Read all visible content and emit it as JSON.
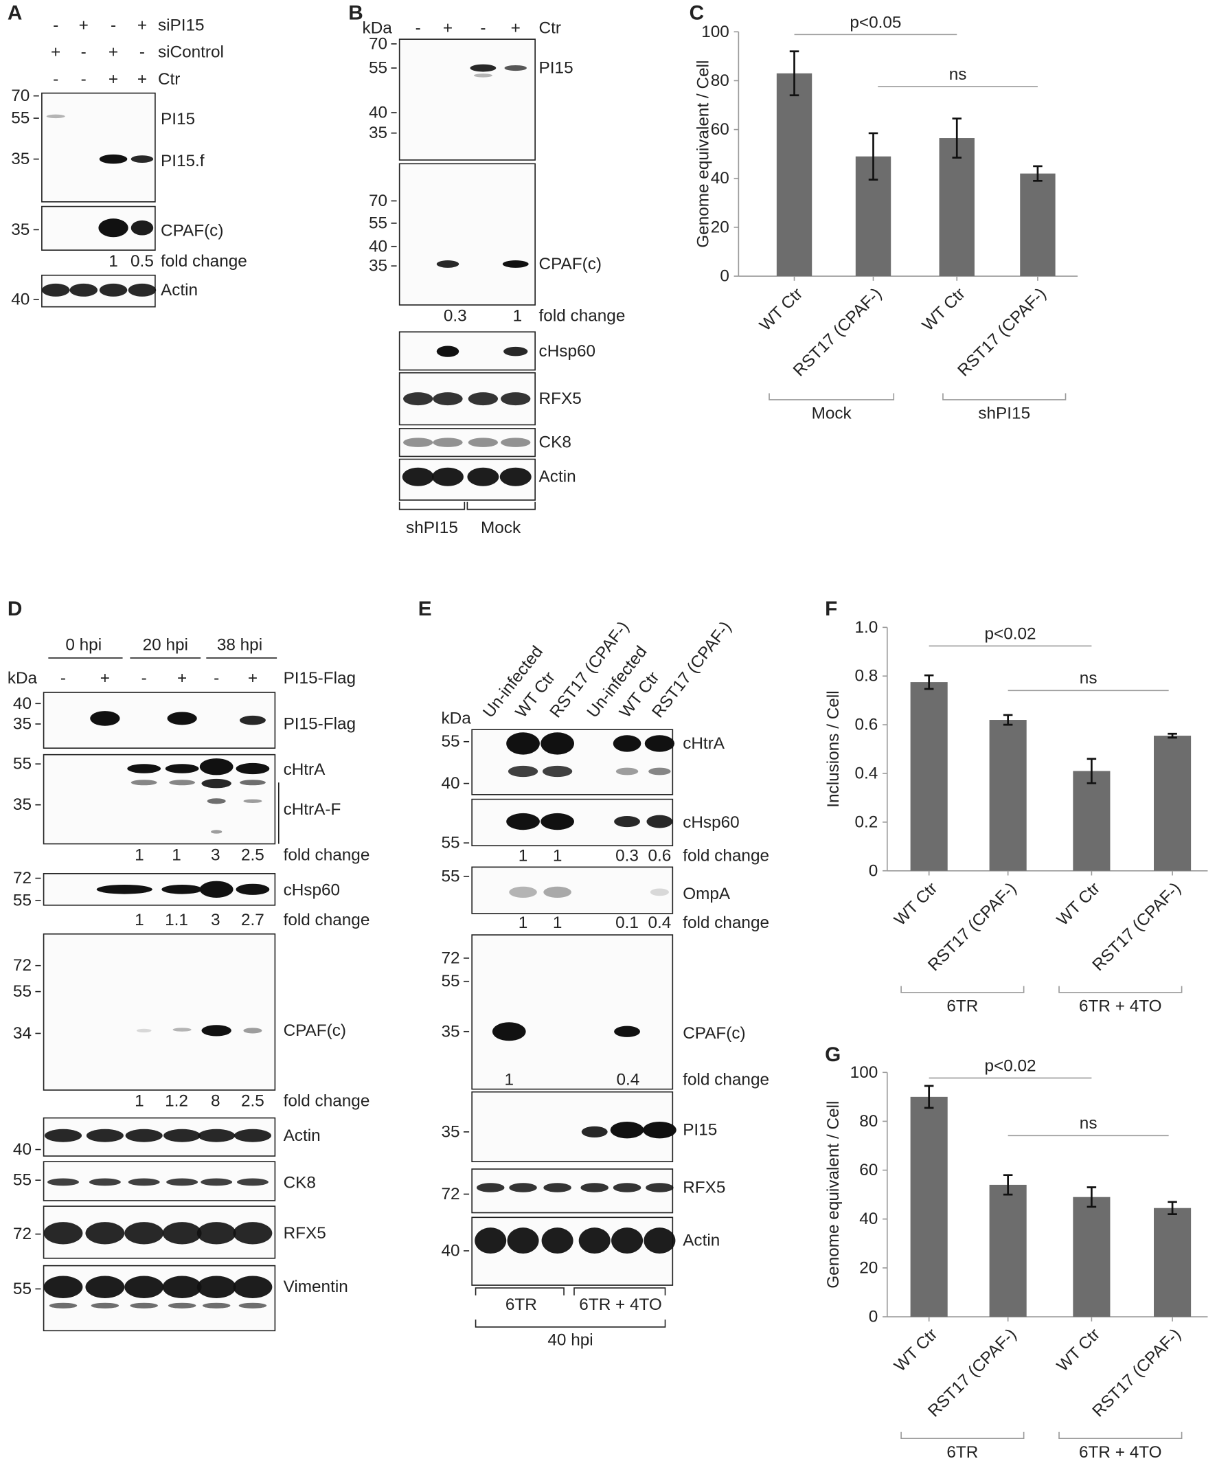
{
  "blots": {
    "a": {
      "letter": "A",
      "conditions": [
        {
          "name": "siPI15",
          "signs": [
            "-",
            "+",
            "-",
            "+"
          ]
        },
        {
          "name": "siControl",
          "signs": [
            "+",
            "-",
            "+",
            "-"
          ]
        },
        {
          "name": "Ctr",
          "signs": [
            "-",
            "-",
            "+",
            "+"
          ]
        }
      ],
      "rows": [
        {
          "markers": [
            "70",
            "55",
            "35"
          ],
          "labels": [
            "PI15",
            "PI15.f"
          ]
        },
        {
          "markers": [
            "35"
          ],
          "labels": [
            "CPAF(c)"
          ],
          "fold_change": [
            "1",
            "0.5"
          ]
        },
        {
          "markers": [
            "40"
          ],
          "labels": [
            "Actin"
          ]
        }
      ],
      "fold_label": "fold change"
    },
    "b": {
      "letter": "B",
      "unit": "kDa",
      "condition": {
        "name": "Ctr",
        "signs": [
          "-",
          "+",
          "-",
          "+"
        ]
      },
      "rows": [
        {
          "markers": [
            "70",
            "55",
            "40",
            "35"
          ],
          "labels": [
            "PI15"
          ]
        },
        {
          "markers": [
            "70",
            "55",
            "40",
            "35"
          ],
          "labels": [
            "CPAF(c)"
          ],
          "fold_change": [
            "0.3",
            "1"
          ]
        },
        {
          "markers": [],
          "labels": [
            "cHsp60"
          ]
        },
        {
          "markers": [],
          "labels": [
            "RFX5"
          ]
        },
        {
          "markers": [],
          "labels": [
            "CK8"
          ]
        },
        {
          "markers": [],
          "labels": [
            "Actin"
          ]
        }
      ],
      "fold_label": "fold change",
      "groups": [
        "shPI15",
        "Mock"
      ]
    },
    "d": {
      "letter": "D",
      "unit": "kDa",
      "timepoints": [
        "0 hpi",
        "20 hpi",
        "38 hpi"
      ],
      "condition": {
        "name": "PI15-Flag",
        "signs": [
          "-",
          "+",
          "-",
          "+",
          "-",
          "+"
        ]
      },
      "rows": [
        {
          "markers": [
            "40",
            "35"
          ],
          "labels": [
            "PI15-Flag"
          ]
        },
        {
          "markers": [
            "55",
            "35"
          ],
          "labels": [
            "cHtrA",
            "cHtrA-F"
          ],
          "fold_change": [
            "1",
            "1",
            "3",
            "2.5"
          ]
        },
        {
          "markers": [
            "72",
            "55"
          ],
          "labels": [
            "cHsp60"
          ],
          "fold_change": [
            "1",
            "1.1",
            "3",
            "2.7"
          ]
        },
        {
          "markers": [
            "72",
            "55",
            "34"
          ],
          "labels": [
            "CPAF(c)"
          ],
          "fold_change": [
            "1",
            "1.2",
            "8",
            "2.5"
          ]
        },
        {
          "markers": [
            "40"
          ],
          "labels": [
            "Actin"
          ]
        },
        {
          "markers": [
            "55"
          ],
          "labels": [
            "CK8"
          ]
        },
        {
          "markers": [
            "72"
          ],
          "labels": [
            "RFX5"
          ]
        },
        {
          "markers": [
            "55"
          ],
          "labels": [
            "Vimentin"
          ]
        }
      ],
      "fold_label": "fold change"
    },
    "e": {
      "letter": "E",
      "unit": "kDa",
      "lanes": [
        "Un-infected",
        "WT Ctr",
        "RST17 (CPAF-)",
        "Un-infected",
        "WT Ctr",
        "RST17 (CPAF-)"
      ],
      "rows": [
        {
          "markers": [
            "55",
            "40"
          ],
          "labels": [
            "cHtrA"
          ]
        },
        {
          "markers": [
            "55"
          ],
          "labels": [
            "cHsp60"
          ],
          "fold_change": [
            "1",
            "1",
            "0.3",
            "0.6"
          ]
        },
        {
          "markers": [
            "55"
          ],
          "labels": [
            "OmpA"
          ],
          "fold_change": [
            "1",
            "1",
            "0.1",
            "0.4"
          ]
        },
        {
          "markers": [
            "72",
            "55",
            "35"
          ],
          "labels": [
            "CPAF(c)"
          ],
          "fold_change": [
            "1",
            "0.4"
          ]
        },
        {
          "markers": [
            "35"
          ],
          "labels": [
            "PI15"
          ]
        },
        {
          "markers": [
            "72"
          ],
          "labels": [
            "RFX5"
          ]
        },
        {
          "markers": [
            "40"
          ],
          "labels": [
            "Actin"
          ]
        }
      ],
      "fold_label": "fold change",
      "groups": [
        "6TR",
        "6TR + 4TO"
      ],
      "span": "40 hpi"
    }
  },
  "chart_data": [
    {
      "type": "bar",
      "panel": "C",
      "ylabel": "Genome equivalent / Cell",
      "categories": [
        "WT Ctr",
        "RST17 (CPAF-)",
        "WT Ctr",
        "RST17 (CPAF-)"
      ],
      "groups": [
        "Mock",
        "shPI15"
      ],
      "values": [
        83,
        49,
        56.5,
        42
      ],
      "errors": [
        9,
        9.5,
        8,
        3
      ],
      "color": "#6d6d6d",
      "ylim": [
        0,
        100
      ],
      "yticks": [
        0,
        20,
        40,
        60,
        80,
        100
      ],
      "annotations": [
        "p<0.05",
        "ns"
      ]
    },
    {
      "type": "bar",
      "panel": "F",
      "ylabel": "Inclusions / Cell",
      "categories": [
        "WT Ctr",
        "RST17 (CPAF-)",
        "WT Ctr",
        "RST17 (CPAF-)"
      ],
      "groups": [
        "6TR",
        "6TR + 4TO"
      ],
      "values": [
        0.775,
        0.62,
        0.41,
        0.555
      ],
      "errors": [
        0.028,
        0.02,
        0.05,
        0.008
      ],
      "color": "#6d6d6d",
      "ylim": [
        0,
        1
      ],
      "yticks": [
        0,
        0.2,
        0.4,
        0.6,
        0.8,
        {
          "value": 1,
          "label": "1.0"
        }
      ],
      "annotations": [
        "p<0.02",
        "ns"
      ]
    },
    {
      "type": "bar",
      "panel": "G",
      "ylabel": "Genome equivalent / Cell",
      "categories": [
        "WT Ctr",
        "RST17 (CPAF-)",
        "WT Ctr",
        "RST17 (CPAF-)"
      ],
      "groups": [
        "6TR",
        "6TR + 4TO"
      ],
      "values": [
        90,
        54,
        49,
        44.5
      ],
      "errors": [
        4.5,
        4,
        4,
        2.5
      ],
      "color": "#6d6d6d",
      "ylim": [
        0,
        100
      ],
      "yticks": [
        0,
        20,
        40,
        60,
        80,
        100
      ],
      "annotations": [
        "p<0.02",
        "ns"
      ]
    }
  ]
}
